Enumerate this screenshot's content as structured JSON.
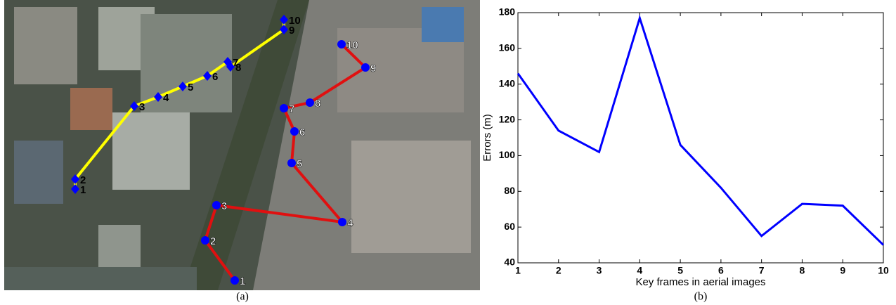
{
  "chart_data": {
    "type": "line",
    "x": [
      1,
      2,
      3,
      4,
      5,
      6,
      7,
      8,
      9,
      10
    ],
    "series": [
      {
        "color": "#0000ff",
        "values": [
          146,
          114,
          102,
          177,
          106,
          82,
          55,
          73,
          72,
          50
        ]
      }
    ],
    "xlim": [
      1,
      10
    ],
    "xticks": [
      1,
      2,
      3,
      4,
      5,
      6,
      7,
      8,
      9,
      10
    ],
    "ylim": [
      40,
      180
    ],
    "yticks": [
      40,
      60,
      80,
      100,
      120,
      140,
      160,
      180
    ],
    "xlabel": "Key frames in aerial images",
    "ylabel": "Errors (m)",
    "grid": false
  },
  "figure": {
    "captions": [
      "(a)",
      "(b)"
    ],
    "tracks": [
      {
        "color": "#ffff00",
        "marker": "diamond",
        "labels": [
          "1",
          "2",
          "3",
          "4",
          "5",
          "6",
          "7",
          "8",
          "9",
          "10"
        ]
      },
      {
        "color": "#e01010",
        "marker": "circle",
        "labels": [
          "1",
          "2",
          "3",
          "4",
          "5",
          "6",
          "7",
          "8",
          "9",
          "10"
        ]
      }
    ]
  }
}
